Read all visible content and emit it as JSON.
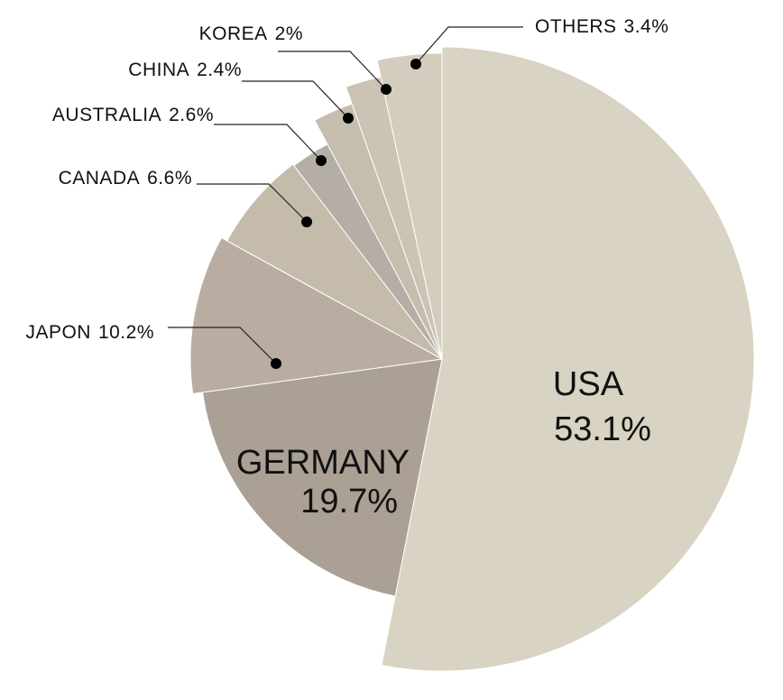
{
  "chart_data": {
    "type": "pie",
    "categories": [
      "USA",
      "GERMANY",
      "JAPON",
      "CANADA",
      "AUSTRALIA",
      "CHINA",
      "KOREA",
      "OTHERS"
    ],
    "values": [
      53.1,
      19.7,
      10.2,
      6.6,
      2.6,
      2.4,
      2,
      3.4
    ],
    "value_labels": [
      "53.1%",
      "19.7%",
      "10.2%",
      "6.6%",
      "2.6%",
      "2.4%",
      "2%",
      "3.4%"
    ],
    "colors": [
      "#d8d3c2",
      "#aaa094",
      "#b8ada0",
      "#c4bbab",
      "#b5aea6",
      "#c5bdae",
      "#cbc4b4",
      "#d4cdbe"
    ]
  }
}
